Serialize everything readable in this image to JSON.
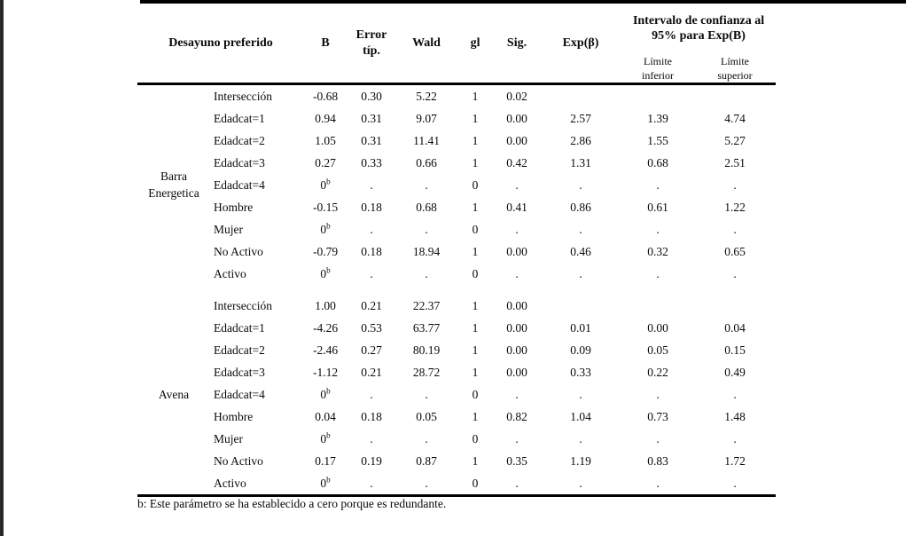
{
  "colors": {
    "line": "#000000",
    "text": "#0a0a0a",
    "left_edge_bar": "#28282c",
    "background": "#ffffff"
  },
  "table": {
    "group_header": "Desayuno preferido",
    "columns": [
      "B",
      "Error típ.",
      "Wald",
      "gl",
      "Sig.",
      "Exp(β)"
    ],
    "interval_header": "Intervalo de confianza al 95% para Exp(B)",
    "interval_subcolumns": [
      "Límite inferior",
      "Límite superior"
    ],
    "groups": [
      {
        "label": "Barra Energetica",
        "label_lines": [
          "Barra",
          "Energetica"
        ],
        "rows": [
          {
            "param": "Intersección",
            "values": [
              "-0.68",
              "0.30",
              "5.22",
              "1",
              "0.02",
              "",
              "",
              ""
            ]
          },
          {
            "param": "Edadcat=1",
            "values": [
              "0.94",
              "0.31",
              "9.07",
              "1",
              "0.00",
              "2.57",
              "1.39",
              "4.74"
            ]
          },
          {
            "param": "Edadcat=2",
            "values": [
              "1.05",
              "0.31",
              "11.41",
              "1",
              "0.00",
              "2.86",
              "1.55",
              "5.27"
            ]
          },
          {
            "param": "Edadcat=3",
            "values": [
              "0.27",
              "0.33",
              "0.66",
              "1",
              "0.42",
              "1.31",
              "0.68",
              "2.51"
            ]
          },
          {
            "param": "Edadcat=4",
            "values": [
              "0^b",
              ".",
              ".",
              "0",
              ".",
              ".",
              ".",
              "."
            ]
          },
          {
            "param": "Hombre",
            "values": [
              "-0.15",
              "0.18",
              "0.68",
              "1",
              "0.41",
              "0.86",
              "0.61",
              "1.22"
            ]
          },
          {
            "param": "Mujer",
            "values": [
              "0^b",
              ".",
              ".",
              "0",
              ".",
              ".",
              ".",
              "."
            ]
          },
          {
            "param": "No Activo",
            "values": [
              "-0.79",
              "0.18",
              "18.94",
              "1",
              "0.00",
              "0.46",
              "0.32",
              "0.65"
            ]
          },
          {
            "param": "Activo",
            "values": [
              "0^b",
              ".",
              ".",
              "0",
              ".",
              ".",
              ".",
              "."
            ]
          }
        ]
      },
      {
        "label": "Avena",
        "label_lines": [
          "Avena"
        ],
        "rows": [
          {
            "param": "Intersección",
            "values": [
              "1.00",
              "0.21",
              "22.37",
              "1",
              "0.00",
              "",
              "",
              ""
            ]
          },
          {
            "param": "Edadcat=1",
            "values": [
              "-4.26",
              "0.53",
              "63.77",
              "1",
              "0.00",
              "0.01",
              "0.00",
              "0.04"
            ]
          },
          {
            "param": "Edadcat=2",
            "values": [
              "-2.46",
              "0.27",
              "80.19",
              "1",
              "0.00",
              "0.09",
              "0.05",
              "0.15"
            ]
          },
          {
            "param": "Edadcat=3",
            "values": [
              "-1.12",
              "0.21",
              "28.72",
              "1",
              "0.00",
              "0.33",
              "0.22",
              "0.49"
            ]
          },
          {
            "param": "Edadcat=4",
            "values": [
              "0^b",
              ".",
              ".",
              "0",
              ".",
              ".",
              ".",
              "."
            ]
          },
          {
            "param": "Hombre",
            "values": [
              "0.04",
              "0.18",
              "0.05",
              "1",
              "0.82",
              "1.04",
              "0.73",
              "1.48"
            ]
          },
          {
            "param": "Mujer",
            "values": [
              "0^b",
              ".",
              ".",
              "0",
              ".",
              ".",
              ".",
              "."
            ]
          },
          {
            "param": "No Activo",
            "values": [
              "0.17",
              "0.19",
              "0.87",
              "1",
              "0.35",
              "1.19",
              "0.83",
              "1.72"
            ]
          },
          {
            "param": "Activo",
            "values": [
              "0^b",
              ".",
              ".",
              "0",
              ".",
              ".",
              ".",
              "."
            ]
          }
        ]
      }
    ],
    "footnote": "b: Este parámetro se ha establecido a cero porque es redundante."
  }
}
